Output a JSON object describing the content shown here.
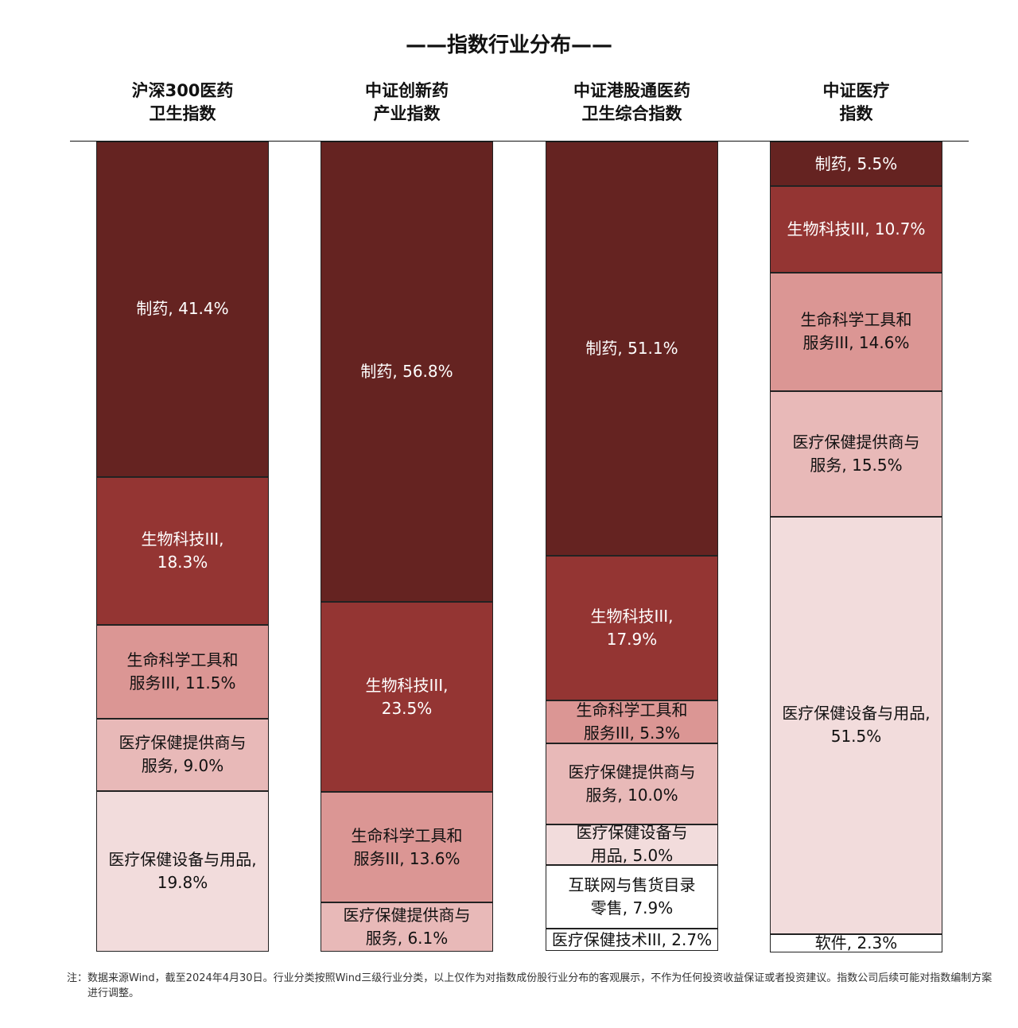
{
  "chart_data": {
    "type": "stacked_bar",
    "title": "——指数行业分布——",
    "ylim": [
      0,
      100
    ],
    "columns": [
      {
        "name": "沪深300医药\n卫生指数",
        "segments": [
          {
            "value": 41.4,
            "value_label": "制药, 41.4%",
            "color": "#652321"
          },
          {
            "value": 18.3,
            "value_label": "生物科技III,\n18.3%",
            "color": "#943533"
          },
          {
            "value": 11.5,
            "value_label": "生命科学工具和\n服务III, 11.5%",
            "color": "#db9694"
          },
          {
            "value": 9.0,
            "value_label": "医疗保健提供商与\n服务, 9.0%",
            "color": "#e8b9b8"
          },
          {
            "value": 19.8,
            "value_label": "医疗保健设备与用品,\n19.8%",
            "color": "#f2dcdc"
          }
        ]
      },
      {
        "name": "中证创新药\n产业指数",
        "segments": [
          {
            "value": 56.8,
            "value_label": "制药, 56.8%",
            "color": "#652321"
          },
          {
            "value": 23.5,
            "value_label": "生物科技III,\n23.5%",
            "color": "#943533"
          },
          {
            "value": 13.6,
            "value_label": "生命科学工具和\n服务III, 13.6%",
            "color": "#db9694"
          },
          {
            "value": 6.1,
            "value_label": "医疗保健提供商与\n服务, 6.1%",
            "color": "#e8b9b8"
          }
        ]
      },
      {
        "name": "中证港股通医药\n卫生综合指数",
        "segments": [
          {
            "value": 51.1,
            "value_label": "制药, 51.1%",
            "color": "#652321"
          },
          {
            "value": 17.9,
            "value_label": "生物科技III,\n17.9%",
            "color": "#943533"
          },
          {
            "value": 5.3,
            "value_label": "生命科学工具和\n服务III, 5.3%",
            "color": "#db9694"
          },
          {
            "value": 10.0,
            "value_label": "医疗保健提供商与\n服务, 10.0%",
            "color": "#e8b9b8"
          },
          {
            "value": 5.0,
            "value_label": "医疗保健设备与\n用品, 5.0%",
            "color": "#f2dcdc"
          },
          {
            "value": 7.9,
            "value_label": "互联网与售货目录\n零售, 7.9%",
            "color": "#ffffff"
          },
          {
            "value": 2.7,
            "value_label": "医疗保健技术III, 2.7%",
            "color": "#ffffff"
          }
        ]
      },
      {
        "name": "中证医疗\n指数",
        "segments": [
          {
            "value": 5.5,
            "value_label": "制药, 5.5%",
            "color": "#652321"
          },
          {
            "value": 10.7,
            "value_label": "生物科技III, 10.7%",
            "color": "#943533"
          },
          {
            "value": 14.6,
            "value_label": "生命科学工具和\n服务III, 14.6%",
            "color": "#db9694"
          },
          {
            "value": 15.5,
            "value_label": "医疗保健提供商与\n服务, 15.5%",
            "color": "#e8b9b8"
          },
          {
            "value": 51.5,
            "value_label": "医疗保健设备与用品,\n51.5%",
            "color": "#f2dcdc"
          },
          {
            "value": 2.3,
            "value_label": "软件, 2.3%",
            "color": "#ffffff"
          }
        ]
      }
    ],
    "note": "注：数据来源Wind，截至2024年4月30日。行业分类按照Wind三级行业分类，以上仅作为对指数成份股行业分布的客观展示，不作为任何投资收益保证或者投资建议。指数公司后续可能对指数编制方案进行调整。"
  }
}
